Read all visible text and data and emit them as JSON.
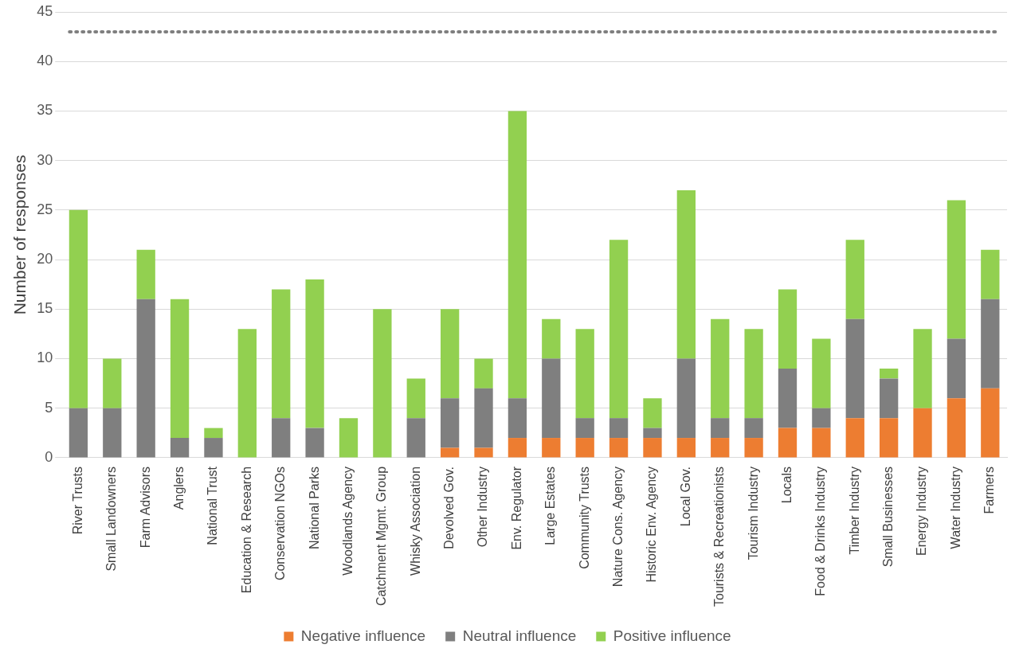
{
  "chart_data": {
    "type": "bar",
    "stacked": true,
    "ylabel": "Number of responses",
    "categories": [
      "River Trusts",
      "Small Landowners",
      "Farm Advisors",
      "Anglers",
      "National Trust",
      "Education & Research",
      "Conservation NGOs",
      "National Parks",
      "Woodlands Agency",
      "Catchment Mgmt. Group",
      "Whisky Association",
      "Devolved Gov.",
      "Other Industry",
      "Env. Regulator",
      "Large Estates",
      "Community Trusts",
      "Nature Cons. Agency",
      "Historic Env. Agency",
      "Local Gov.",
      "Tourists & Recreationists",
      "Tourism Industry",
      "Locals",
      "Food & Drinks Industry",
      "Timber Industry",
      "Small Businesses",
      "Energy Industry",
      "Water Industry",
      "Farmers"
    ],
    "series": [
      {
        "name": "Negative influence",
        "color": "#ed7d31",
        "values": [
          0,
          0,
          0,
          0,
          0,
          0,
          0,
          0,
          0,
          0,
          0,
          1,
          1,
          2,
          2,
          2,
          2,
          2,
          2,
          2,
          2,
          3,
          3,
          4,
          4,
          5,
          6,
          7
        ]
      },
      {
        "name": "Neutral influence",
        "color": "#7f7f7f",
        "values": [
          5,
          5,
          16,
          2,
          2,
          0,
          4,
          3,
          0,
          0,
          4,
          5,
          6,
          4,
          8,
          2,
          2,
          1,
          8,
          2,
          2,
          6,
          2,
          10,
          4,
          0,
          6,
          9
        ]
      },
      {
        "name": "Positive influence",
        "color": "#92d050",
        "values": [
          20,
          5,
          5,
          14,
          1,
          13,
          13,
          15,
          4,
          15,
          4,
          9,
          3,
          29,
          4,
          9,
          18,
          3,
          17,
          10,
          9,
          8,
          7,
          8,
          1,
          8,
          14,
          5
        ]
      }
    ],
    "ylim": [
      0,
      45
    ],
    "yticks": [
      0,
      5,
      10,
      15,
      20,
      25,
      30,
      35,
      40,
      45
    ],
    "grid": "y",
    "legend": "bottom",
    "ref_lines": [
      {
        "axis": "y",
        "value": 43,
        "color": "#7f7f7f",
        "line_style": "dotted"
      }
    ]
  }
}
